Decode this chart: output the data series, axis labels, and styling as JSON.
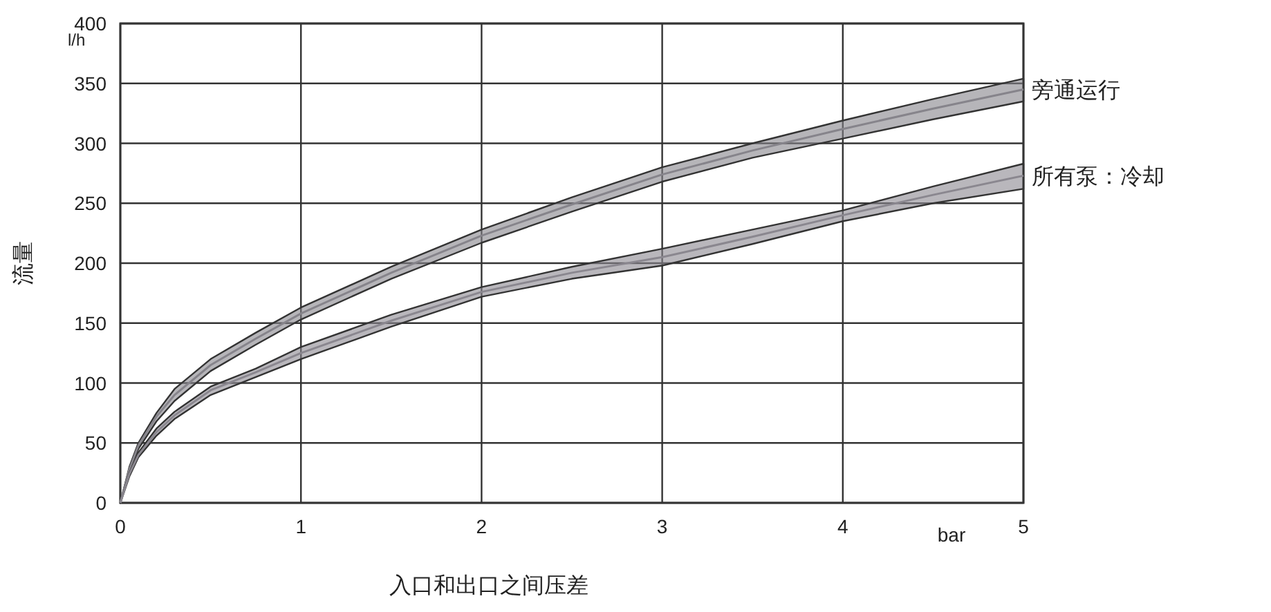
{
  "chart_data": {
    "type": "line",
    "xlabel": "入口和出口之间压差",
    "ylabel": "流量",
    "annotations": [
      "l/h",
      "bar"
    ],
    "x": [
      0,
      0.05,
      0.1,
      0.2,
      0.3,
      0.5,
      0.75,
      1,
      1.5,
      2,
      2.5,
      3,
      3.5,
      4,
      4.5,
      5
    ],
    "series": [
      {
        "name": "旁通运行",
        "color": "#86848b",
        "values": [
          0,
          28,
          48,
          72,
          90,
          115,
          137,
          158,
          192,
          223,
          249,
          274,
          294,
          312,
          329,
          345
        ],
        "upper": [
          0,
          30,
          50,
          75,
          95,
          120,
          142,
          163,
          197,
          228,
          255,
          280,
          300,
          319,
          337,
          354
        ],
        "lower": [
          0,
          27,
          45,
          68,
          85,
          110,
          132,
          153,
          187,
          217,
          243,
          268,
          288,
          304,
          320,
          335
        ]
      },
      {
        "name": "所有泵：冷却",
        "color": "#8a878f",
        "values": [
          0,
          24,
          40,
          59,
          73,
          94,
          109,
          125,
          152,
          176,
          192,
          205,
          222,
          240,
          257,
          273
        ],
        "upper": [
          0,
          25,
          42,
          62,
          76,
          97,
          112,
          130,
          157,
          180,
          197,
          212,
          228,
          244,
          264,
          283
        ],
        "lower": [
          0,
          22,
          38,
          56,
          70,
          90,
          105,
          120,
          147,
          172,
          187,
          198,
          216,
          235,
          250,
          262
        ]
      }
    ],
    "xlim": [
      0,
      5
    ],
    "xticks": [
      0,
      1,
      2,
      3,
      4,
      5
    ],
    "ylim": [
      0,
      400
    ],
    "yticks": [
      0,
      50,
      100,
      150,
      200,
      250,
      300,
      350,
      400
    ],
    "grid": true,
    "legend": "right",
    "line_style": "solid"
  }
}
